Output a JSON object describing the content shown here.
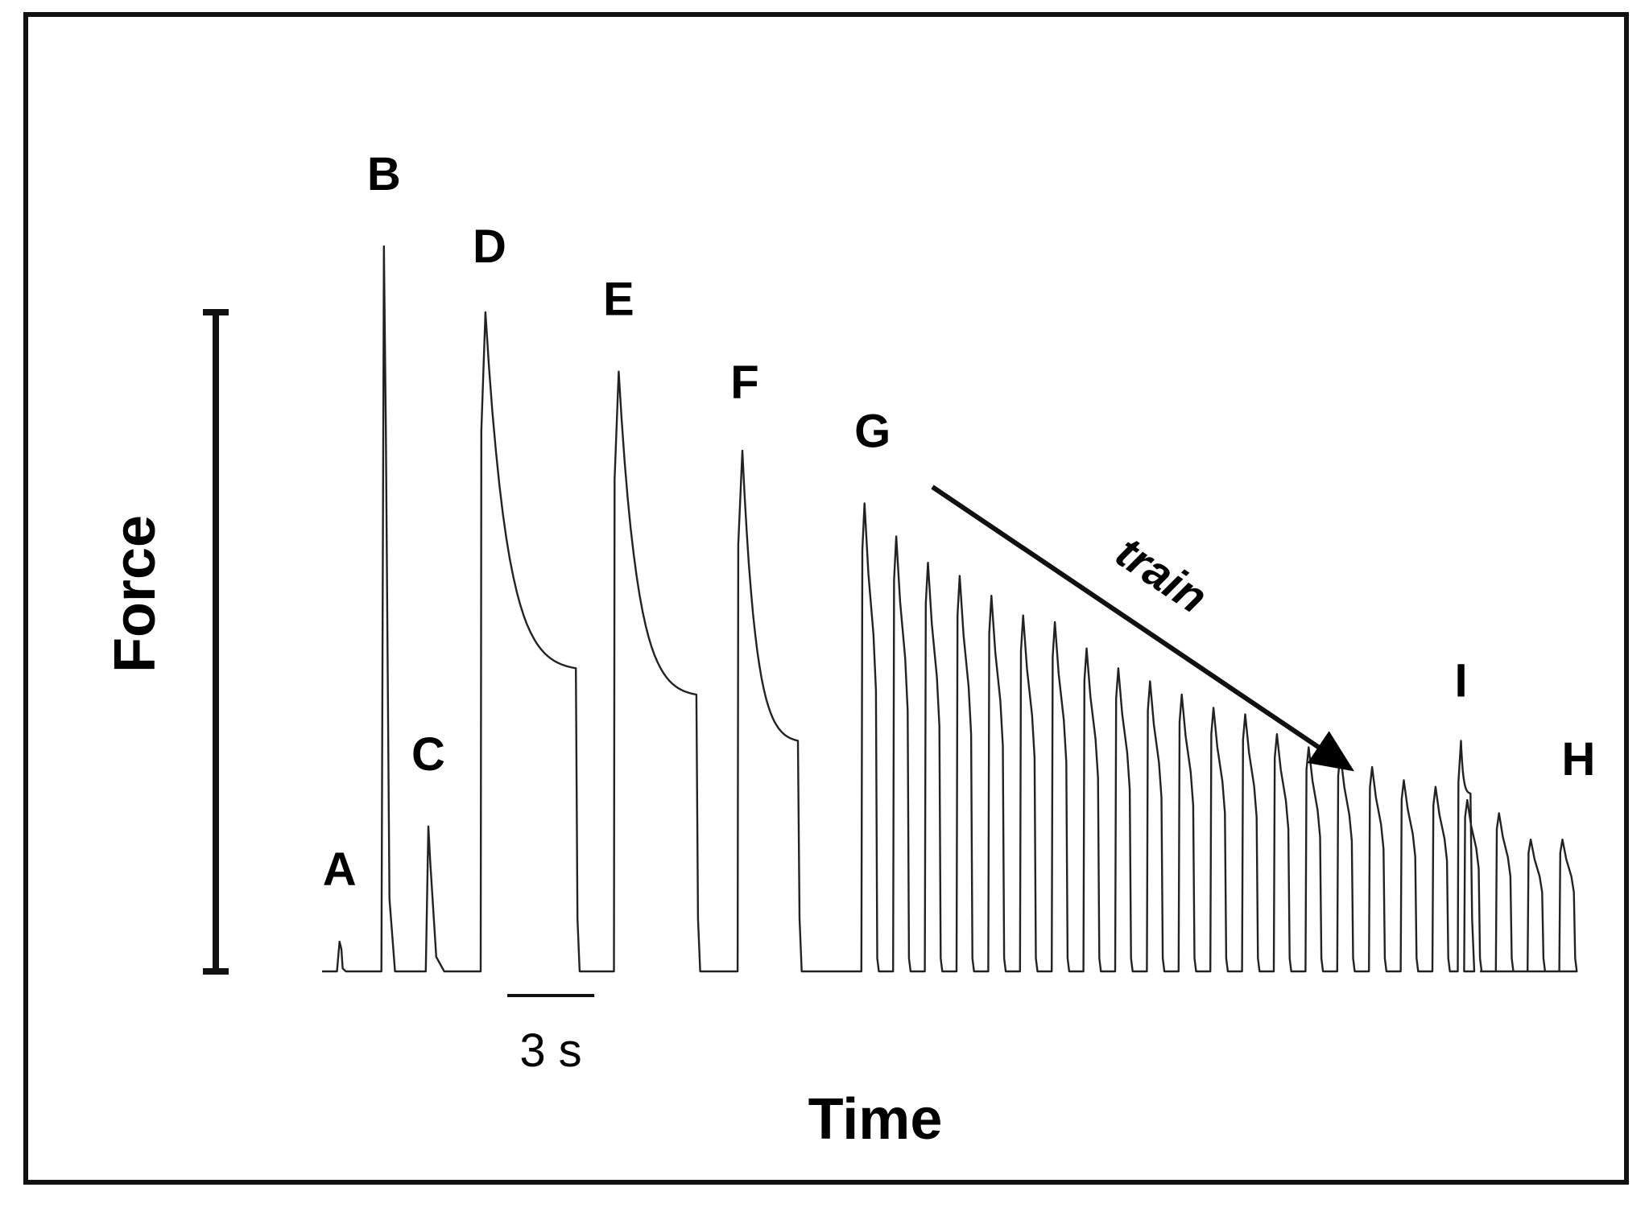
{
  "chart_data": {
    "type": "line",
    "xlabel": "Time",
    "ylabel": "Force",
    "scale_bar_label": "3 s",
    "scale_bar_seconds": 3,
    "annotation_label": "train",
    "peak_labels": [
      "A",
      "B",
      "C",
      "D",
      "E",
      "F",
      "G",
      "H",
      "I"
    ],
    "events": [
      {
        "label": "A",
        "kind": "twitch",
        "t": 0.55,
        "force": 0.045,
        "width": 0.2
      },
      {
        "label": "B",
        "kind": "twitch",
        "t": 1.95,
        "force": 1.1,
        "width": 0.35
      },
      {
        "label": "C",
        "kind": "twitch",
        "t": 3.35,
        "force": 0.22,
        "width": 0.5
      },
      {
        "label": "D",
        "kind": "tetanus",
        "start": 5.0,
        "peak_t": 5.15,
        "end": 8.0,
        "force": 1.0,
        "end_force": 0.46
      },
      {
        "label": "E",
        "kind": "tetanus",
        "start": 9.2,
        "peak_t": 9.35,
        "end": 11.8,
        "force": 0.91,
        "end_force": 0.42
      },
      {
        "label": "F",
        "kind": "tetanus",
        "start": 13.1,
        "peak_t": 13.25,
        "end": 15.0,
        "force": 0.79,
        "end_force": 0.35
      },
      {
        "label": "I",
        "kind": "tetanus",
        "start": 35.8,
        "peak_t": 35.9,
        "end": 36.2,
        "force": 0.35,
        "end_force": 0.27
      }
    ],
    "train": {
      "start_label": "G",
      "end_label": "H",
      "start": 17.0,
      "period": 1.0,
      "peak_forces": [
        0.71,
        0.66,
        0.62,
        0.6,
        0.57,
        0.54,
        0.53,
        0.49,
        0.46,
        0.44,
        0.42,
        0.4,
        0.39,
        0.36,
        0.34,
        0.33,
        0.31,
        0.29,
        0.28,
        0.26,
        0.24,
        0.2,
        0.2
      ]
    },
    "t_range": [
      0,
      36.5
    ],
    "force_range": [
      0,
      1.0
    ]
  }
}
